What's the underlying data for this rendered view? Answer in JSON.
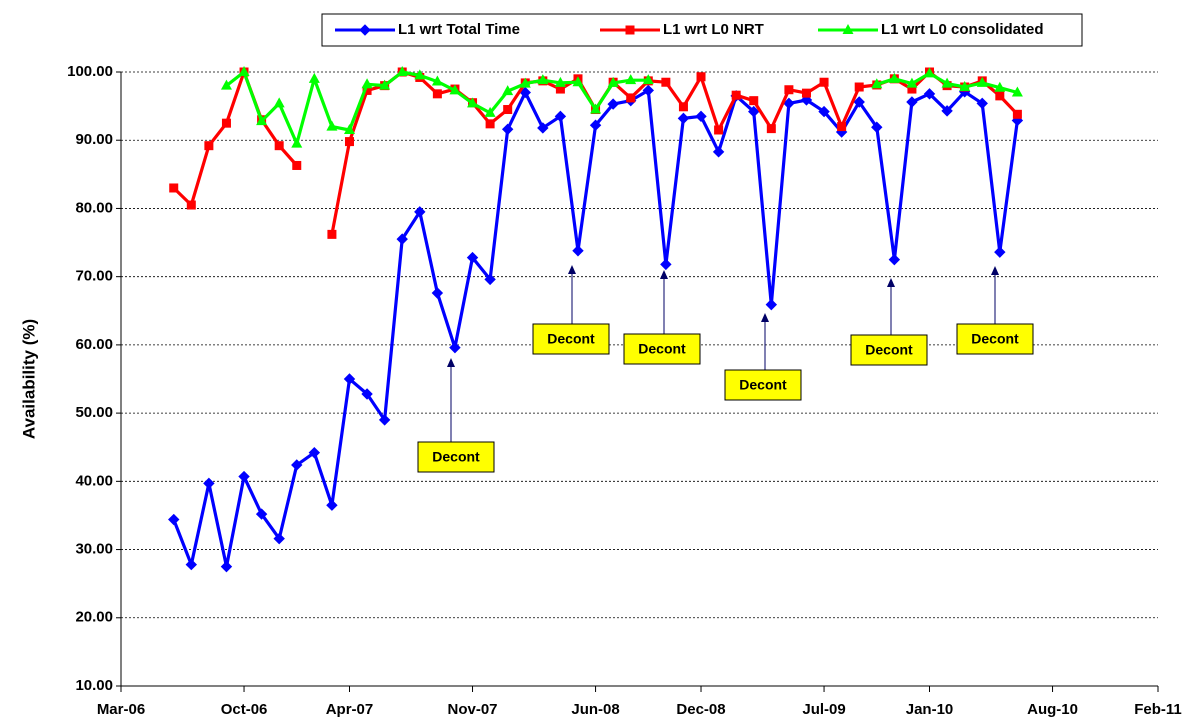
{
  "chart_data": {
    "type": "line",
    "y_label": "Availability (%)",
    "x": [
      "Jun-06",
      "Jul-06",
      "Aug-06",
      "Sep-06",
      "Oct-06",
      "Nov-06",
      "Dec-06",
      "Jan-07",
      "Feb-07",
      "Mar-07",
      "Apr-07",
      "May-07",
      "Jun-07",
      "Jul-07",
      "Aug-07",
      "Sep-07",
      "Oct-07",
      "Nov-07",
      "Dec-07",
      "Jan-08",
      "Feb-08",
      "Mar-08",
      "Apr-08",
      "May-08",
      "Jun-08",
      "Jul-08",
      "Aug-08",
      "Sep-08",
      "Oct-08",
      "Nov-08",
      "Dec-08",
      "Jan-09",
      "Feb-09",
      "Mar-09",
      "Apr-09",
      "May-09",
      "Jun-09",
      "Jul-09",
      "Aug-09",
      "Sep-09",
      "Oct-09",
      "Nov-09",
      "Dec-09",
      "Jan-10",
      "Feb-10",
      "Mar-10",
      "Apr-10",
      "May-10",
      "Jun-10"
    ],
    "series": [
      {
        "name": "L1 wrt Total Time",
        "color": "#0000ff",
        "marker": "diamond",
        "values": [
          34.4,
          27.8,
          39.7,
          27.5,
          40.7,
          35.2,
          31.6,
          42.4,
          44.2,
          36.5,
          55.0,
          52.8,
          49.0,
          75.5,
          79.5,
          67.6,
          59.6,
          72.8,
          69.6,
          91.6,
          97.0,
          91.8,
          93.5,
          73.8,
          92.2,
          95.3,
          95.8,
          97.3,
          71.8,
          93.2,
          93.5,
          88.3,
          96.5,
          94.2,
          65.9,
          95.4,
          95.9,
          94.2,
          91.2,
          95.6,
          91.9,
          72.5,
          95.6,
          96.8,
          94.3,
          97.1,
          95.4,
          73.6,
          92.9
        ]
      },
      {
        "name": "L1 wrt L0 NRT",
        "color": "#ff0000",
        "marker": "square",
        "values": [
          83.0,
          80.5,
          89.2,
          92.5,
          100.0,
          93.0,
          89.2,
          86.3,
          null,
          76.2,
          89.8,
          97.3,
          98.0,
          100.0,
          99.2,
          96.8,
          97.5,
          95.5,
          92.4,
          94.5,
          98.4,
          98.7,
          97.5,
          99.0,
          94.5,
          98.5,
          96.2,
          98.7,
          98.5,
          94.9,
          99.3,
          91.5,
          96.6,
          95.8,
          91.7,
          97.4,
          96.9,
          98.5,
          92.0,
          97.8,
          98.1,
          99.0,
          97.5,
          100.0,
          98.0,
          97.8,
          98.7,
          96.5,
          93.8
        ]
      },
      {
        "name": "L1 wrt L0 consolidated",
        "color": "#00ff00",
        "marker": "triangle",
        "values": [
          null,
          null,
          null,
          98.0,
          100.0,
          92.8,
          95.4,
          89.5,
          99.0,
          92.0,
          91.5,
          98.2,
          98.0,
          100.0,
          99.5,
          98.6,
          97.3,
          95.4,
          94.0,
          97.2,
          98.3,
          98.8,
          98.4,
          98.5,
          94.5,
          98.4,
          98.8,
          98.8,
          null,
          null,
          null,
          null,
          null,
          null,
          null,
          null,
          null,
          null,
          null,
          null,
          98.2,
          99.0,
          98.3,
          99.8,
          98.3,
          97.8,
          98.4,
          97.7,
          97.0
        ]
      }
    ],
    "annotations": [
      "Decont",
      "Decont",
      "Decont",
      "Decont",
      "Decont",
      "Decont"
    ],
    "xlim": [
      "Mar-06",
      "Feb-11"
    ],
    "xticks": [
      "Mar-06",
      "Oct-06",
      "Apr-07",
      "Nov-07",
      "Jun-08",
      "Dec-08",
      "Jul-09",
      "Jan-10",
      "Aug-10",
      "Feb-11"
    ],
    "ylim": [
      10,
      100
    ],
    "yticks": [
      {
        "value": 10,
        "label": "10.00"
      },
      {
        "value": 20,
        "label": "20.00"
      },
      {
        "value": 30,
        "label": "30.00"
      },
      {
        "value": 40,
        "label": "40.00"
      },
      {
        "value": 50,
        "label": "50.00"
      },
      {
        "value": 60,
        "label": "60.00"
      },
      {
        "value": 70,
        "label": "70.00"
      },
      {
        "value": 80,
        "label": "80.00"
      },
      {
        "value": 90,
        "label": "90.00"
      },
      {
        "value": 100,
        "label": "100.00"
      }
    ],
    "grid": true
  }
}
